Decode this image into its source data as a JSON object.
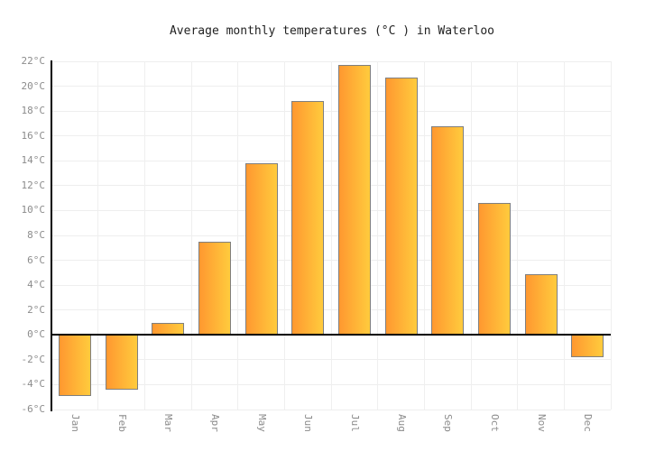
{
  "chart_data": {
    "type": "bar",
    "title": "Average monthly temperatures (°C ) in Waterloo",
    "categories": [
      "Jan",
      "Feb",
      "Mar",
      "Apr",
      "May",
      "Jun",
      "Jul",
      "Aug",
      "Sep",
      "Oct",
      "Nov",
      "Dec"
    ],
    "values": [
      -4.9,
      -4.4,
      1.0,
      7.5,
      13.8,
      18.8,
      21.7,
      20.7,
      16.8,
      10.6,
      4.9,
      -1.8
    ],
    "unit": "°C",
    "xlabel": "",
    "ylabel": "",
    "ylim": [
      -6,
      22
    ],
    "ytick_step": 2,
    "yticks": [
      {
        "value": 22,
        "label": "22°C"
      },
      {
        "value": 20,
        "label": "20°C"
      },
      {
        "value": 18,
        "label": "18°C"
      },
      {
        "value": 16,
        "label": "16°C"
      },
      {
        "value": 14,
        "label": "14°C"
      },
      {
        "value": 12,
        "label": "12°C"
      },
      {
        "value": 10,
        "label": "10°C"
      },
      {
        "value": 8,
        "label": "8°C"
      },
      {
        "value": 6,
        "label": "6°C"
      },
      {
        "value": 4,
        "label": "4°C"
      },
      {
        "value": 2,
        "label": "2°C"
      },
      {
        "value": 0,
        "label": "0°C"
      },
      {
        "value": -2,
        "label": "-2°C"
      },
      {
        "value": -4,
        "label": "-4°C"
      },
      {
        "value": -6,
        "label": "-6°C"
      }
    ],
    "grid": true,
    "legend_position": "none",
    "colors": {
      "bar_gradient_left": "#FF9830",
      "bar_gradient_right": "#FFCB3D",
      "bar_border": "#7F7F7F",
      "axis": "#000000",
      "grid": "#EEEEEE",
      "tick_text": "#8C8C8C",
      "title_text": "#222222",
      "background": "#FFFFFF"
    }
  }
}
